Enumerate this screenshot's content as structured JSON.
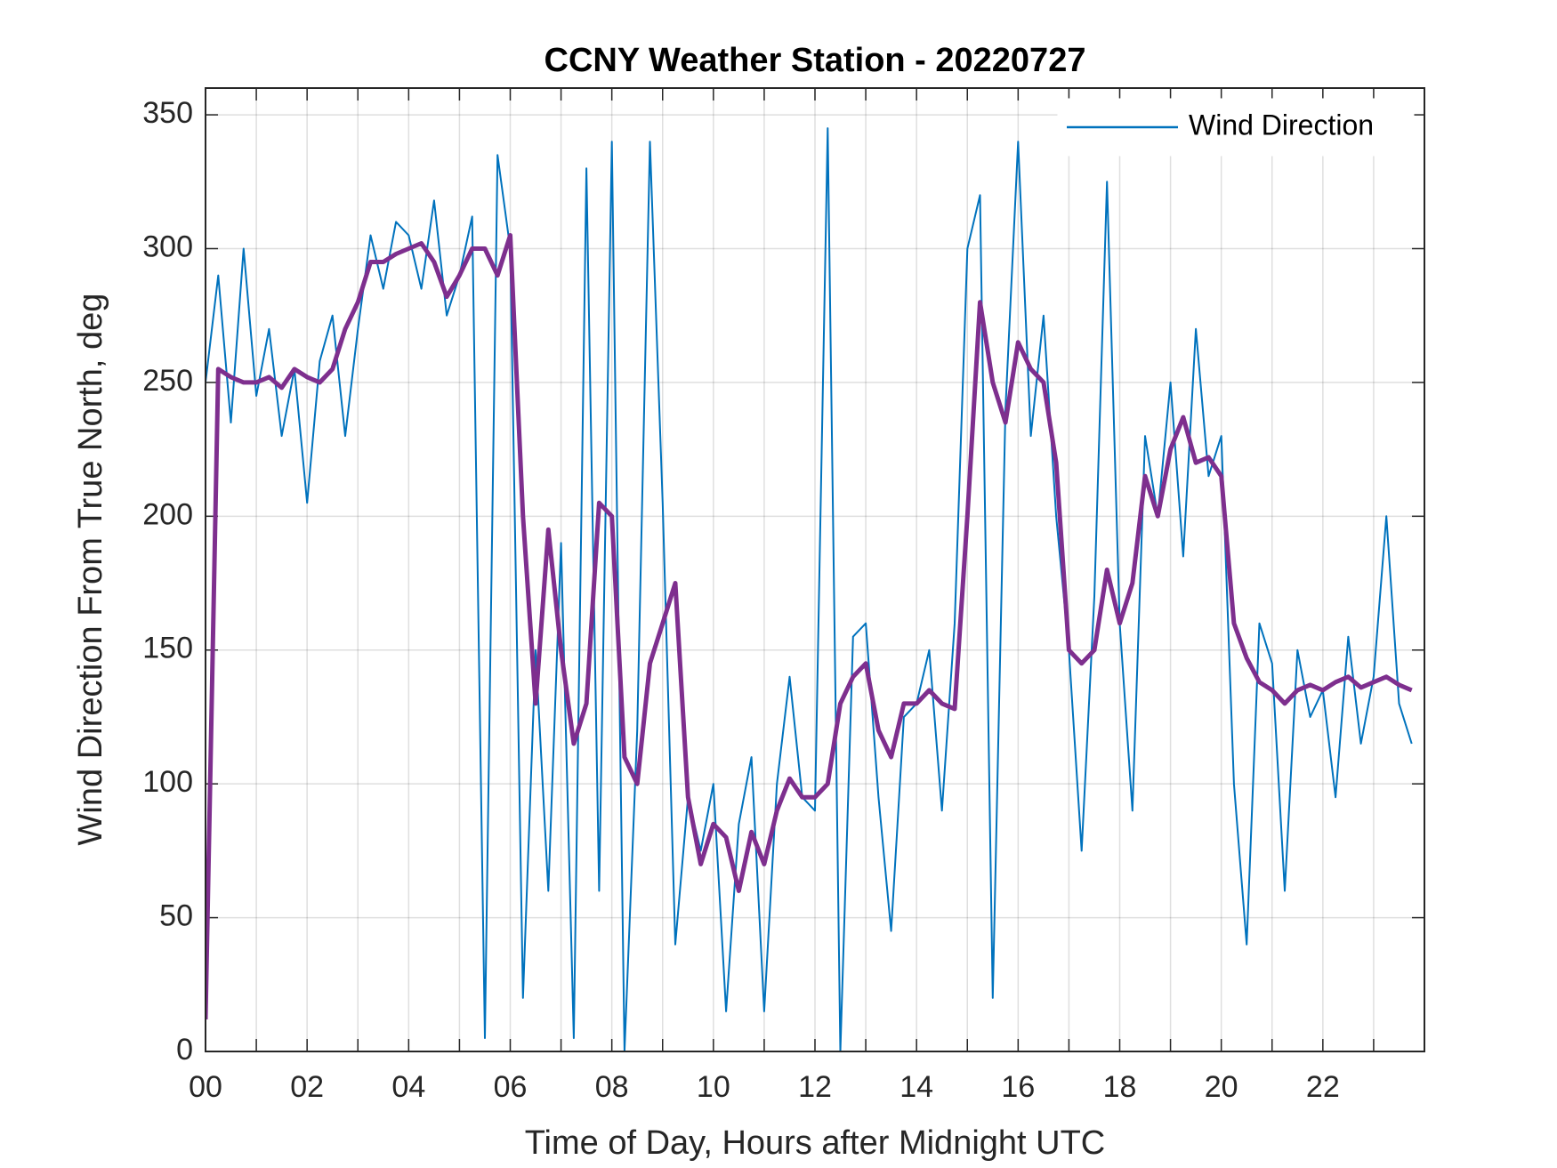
{
  "chart_data": {
    "type": "line",
    "title": "CCNY Weather Station - 20220727",
    "x_label": "Time of Day, Hours after Midnight UTC",
    "y_label": "Wind Direction From True North, deg",
    "xlim": [
      0,
      24
    ],
    "ylim": [
      0,
      360
    ],
    "xticks": [
      {
        "value": 0,
        "label": "00"
      },
      {
        "value": 2,
        "label": "02"
      },
      {
        "value": 4,
        "label": "04"
      },
      {
        "value": 6,
        "label": "06"
      },
      {
        "value": 8,
        "label": "08"
      },
      {
        "value": 10,
        "label": "10"
      },
      {
        "value": 12,
        "label": "12"
      },
      {
        "value": 14,
        "label": "14"
      },
      {
        "value": 16,
        "label": "16"
      },
      {
        "value": 18,
        "label": "18"
      },
      {
        "value": 20,
        "label": "20"
      },
      {
        "value": 22,
        "label": "22"
      }
    ],
    "xminorticks": [
      1,
      3,
      5,
      7,
      9,
      11,
      13,
      15,
      17,
      19,
      21,
      23
    ],
    "yticks": [
      0,
      50,
      100,
      150,
      200,
      250,
      300,
      350
    ],
    "grid": true,
    "legend": "top-right",
    "x": [
      0,
      0.25,
      0.5,
      0.75,
      1,
      1.25,
      1.5,
      1.75,
      2,
      2.25,
      2.5,
      2.75,
      3,
      3.25,
      3.5,
      3.75,
      4,
      4.25,
      4.5,
      4.75,
      5,
      5.25,
      5.5,
      5.75,
      6,
      6.25,
      6.5,
      6.75,
      7,
      7.25,
      7.5,
      7.75,
      8,
      8.25,
      8.5,
      8.75,
      9,
      9.25,
      9.5,
      9.75,
      10,
      10.25,
      10.5,
      10.75,
      11,
      11.25,
      11.5,
      11.75,
      12,
      12.25,
      12.5,
      12.75,
      13,
      13.25,
      13.5,
      13.75,
      14,
      14.25,
      14.5,
      14.75,
      15,
      15.25,
      15.5,
      15.75,
      16,
      16.25,
      16.5,
      16.75,
      17,
      17.25,
      17.5,
      17.75,
      18,
      18.25,
      18.5,
      18.75,
      19,
      19.25,
      19.5,
      19.75,
      20,
      20.25,
      20.5,
      20.75,
      21,
      21.25,
      21.5,
      21.75,
      22,
      22.25,
      22.5,
      22.75,
      23,
      23.25,
      23.5,
      23.75
    ],
    "series": [
      {
        "name": "Wind Direction",
        "color": "#0072bd",
        "values": [
          250,
          290,
          235,
          300,
          245,
          270,
          230,
          255,
          205,
          258,
          275,
          230,
          270,
          305,
          285,
          310,
          305,
          285,
          318,
          275,
          290,
          312,
          5,
          335,
          300,
          20,
          150,
          60,
          190,
          5,
          330,
          60,
          340,
          0,
          120,
          340,
          205,
          40,
          95,
          75,
          100,
          15,
          85,
          110,
          15,
          100,
          140,
          95,
          90,
          345,
          0,
          155,
          160,
          95,
          45,
          125,
          130,
          150,
          90,
          160,
          300,
          320,
          20,
          240,
          340,
          230,
          275,
          200,
          150,
          75,
          170,
          325,
          160,
          90,
          230,
          200,
          250,
          185,
          270,
          215,
          230,
          100,
          40,
          160,
          145,
          60,
          150,
          125,
          135,
          95,
          155,
          115,
          140,
          200,
          130,
          115
        ]
      },
      {
        "color": "#7e2f8e",
        "values": [
          12,
          255,
          252,
          250,
          250,
          252,
          248,
          255,
          252,
          250,
          255,
          270,
          280,
          295,
          295,
          298,
          300,
          302,
          295,
          282,
          290,
          300,
          300,
          290,
          305,
          200,
          130,
          195,
          150,
          115,
          130,
          205,
          200,
          110,
          100,
          145,
          160,
          175,
          95,
          70,
          85,
          80,
          60,
          82,
          70,
          90,
          102,
          95,
          95,
          100,
          130,
          140,
          145,
          120,
          110,
          130,
          130,
          135,
          130,
          128,
          200,
          280,
          250,
          235,
          265,
          255,
          250,
          220,
          150,
          145,
          150,
          180,
          160,
          175,
          215,
          200,
          225,
          237,
          220,
          222,
          215,
          160,
          147,
          138,
          135,
          130,
          135,
          137,
          135,
          138,
          140,
          136,
          138,
          140,
          137,
          135
        ]
      }
    ]
  }
}
